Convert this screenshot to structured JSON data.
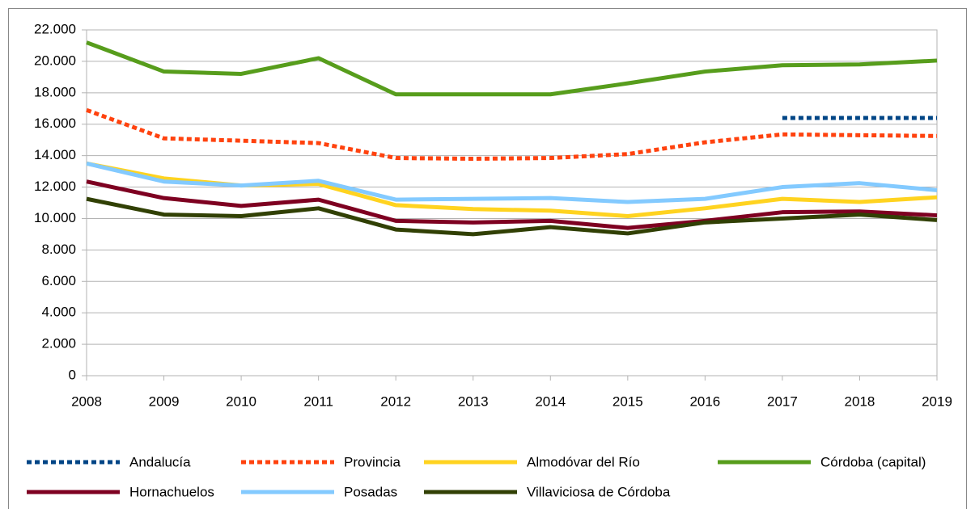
{
  "chart_data": {
    "type": "line",
    "x": [
      2008,
      2009,
      2010,
      2011,
      2012,
      2013,
      2014,
      2015,
      2016,
      2017,
      2018,
      2019
    ],
    "xlim": [
      2008,
      2019
    ],
    "xticks": [
      2008,
      2009,
      2010,
      2011,
      2012,
      2013,
      2014,
      2015,
      2016,
      2017,
      2018,
      2019
    ],
    "ylim": [
      0,
      22000
    ],
    "yticks": [
      0,
      {
        "value": 2000,
        "label": "2.000"
      },
      {
        "value": 4000,
        "label": "4.000"
      },
      {
        "value": 6000,
        "label": "6.000"
      },
      {
        "value": 8000,
        "label": "8.000"
      },
      {
        "value": 10000,
        "label": "10.000"
      },
      {
        "value": 12000,
        "label": "12.000"
      },
      {
        "value": 14000,
        "label": "14.000"
      },
      {
        "value": 16000,
        "label": "16.000"
      },
      {
        "value": 18000,
        "label": "18.000"
      },
      {
        "value": 20000,
        "label": "20.000"
      },
      {
        "value": 22000,
        "label": "22.000"
      }
    ],
    "grid": true,
    "legend": "bottom",
    "series": [
      {
        "name": "Andalucía",
        "color": "#004586",
        "dash": "dotted",
        "values": [
          null,
          null,
          null,
          null,
          null,
          null,
          null,
          null,
          null,
          16400,
          16400,
          16400
        ]
      },
      {
        "name": "Provincia",
        "color": "#ff420e",
        "dash": "dotted",
        "values": [
          16900,
          15100,
          14950,
          14800,
          13850,
          13800,
          13850,
          14100,
          14850,
          15350,
          15300,
          15250
        ]
      },
      {
        "name": "Almodóvar del Río",
        "color": "#ffd320",
        "values": [
          13500,
          12550,
          12100,
          12200,
          10850,
          10600,
          10500,
          10150,
          10650,
          11250,
          11050,
          11350
        ]
      },
      {
        "name": "Córdoba (capital)",
        "color": "#579d1c",
        "values": [
          21200,
          19350,
          19200,
          20200,
          17900,
          17900,
          17900,
          18600,
          19350,
          19750,
          19800,
          20050
        ]
      },
      {
        "name": "Hornachuelos",
        "color": "#7e0021",
        "values": [
          12350,
          11300,
          10800,
          11200,
          9850,
          9750,
          9850,
          9400,
          9850,
          10400,
          10450,
          10200
        ]
      },
      {
        "name": "Posadas",
        "color": "#83caff",
        "values": [
          13500,
          12350,
          12100,
          12400,
          11200,
          11250,
          11300,
          11050,
          11250,
          12000,
          12250,
          11800
        ]
      },
      {
        "name": "Villaviciosa de Córdoba",
        "color": "#314004",
        "values": [
          11250,
          10250,
          10150,
          10650,
          9300,
          9000,
          9450,
          9050,
          9750,
          10000,
          10250,
          9900
        ]
      }
    ]
  }
}
